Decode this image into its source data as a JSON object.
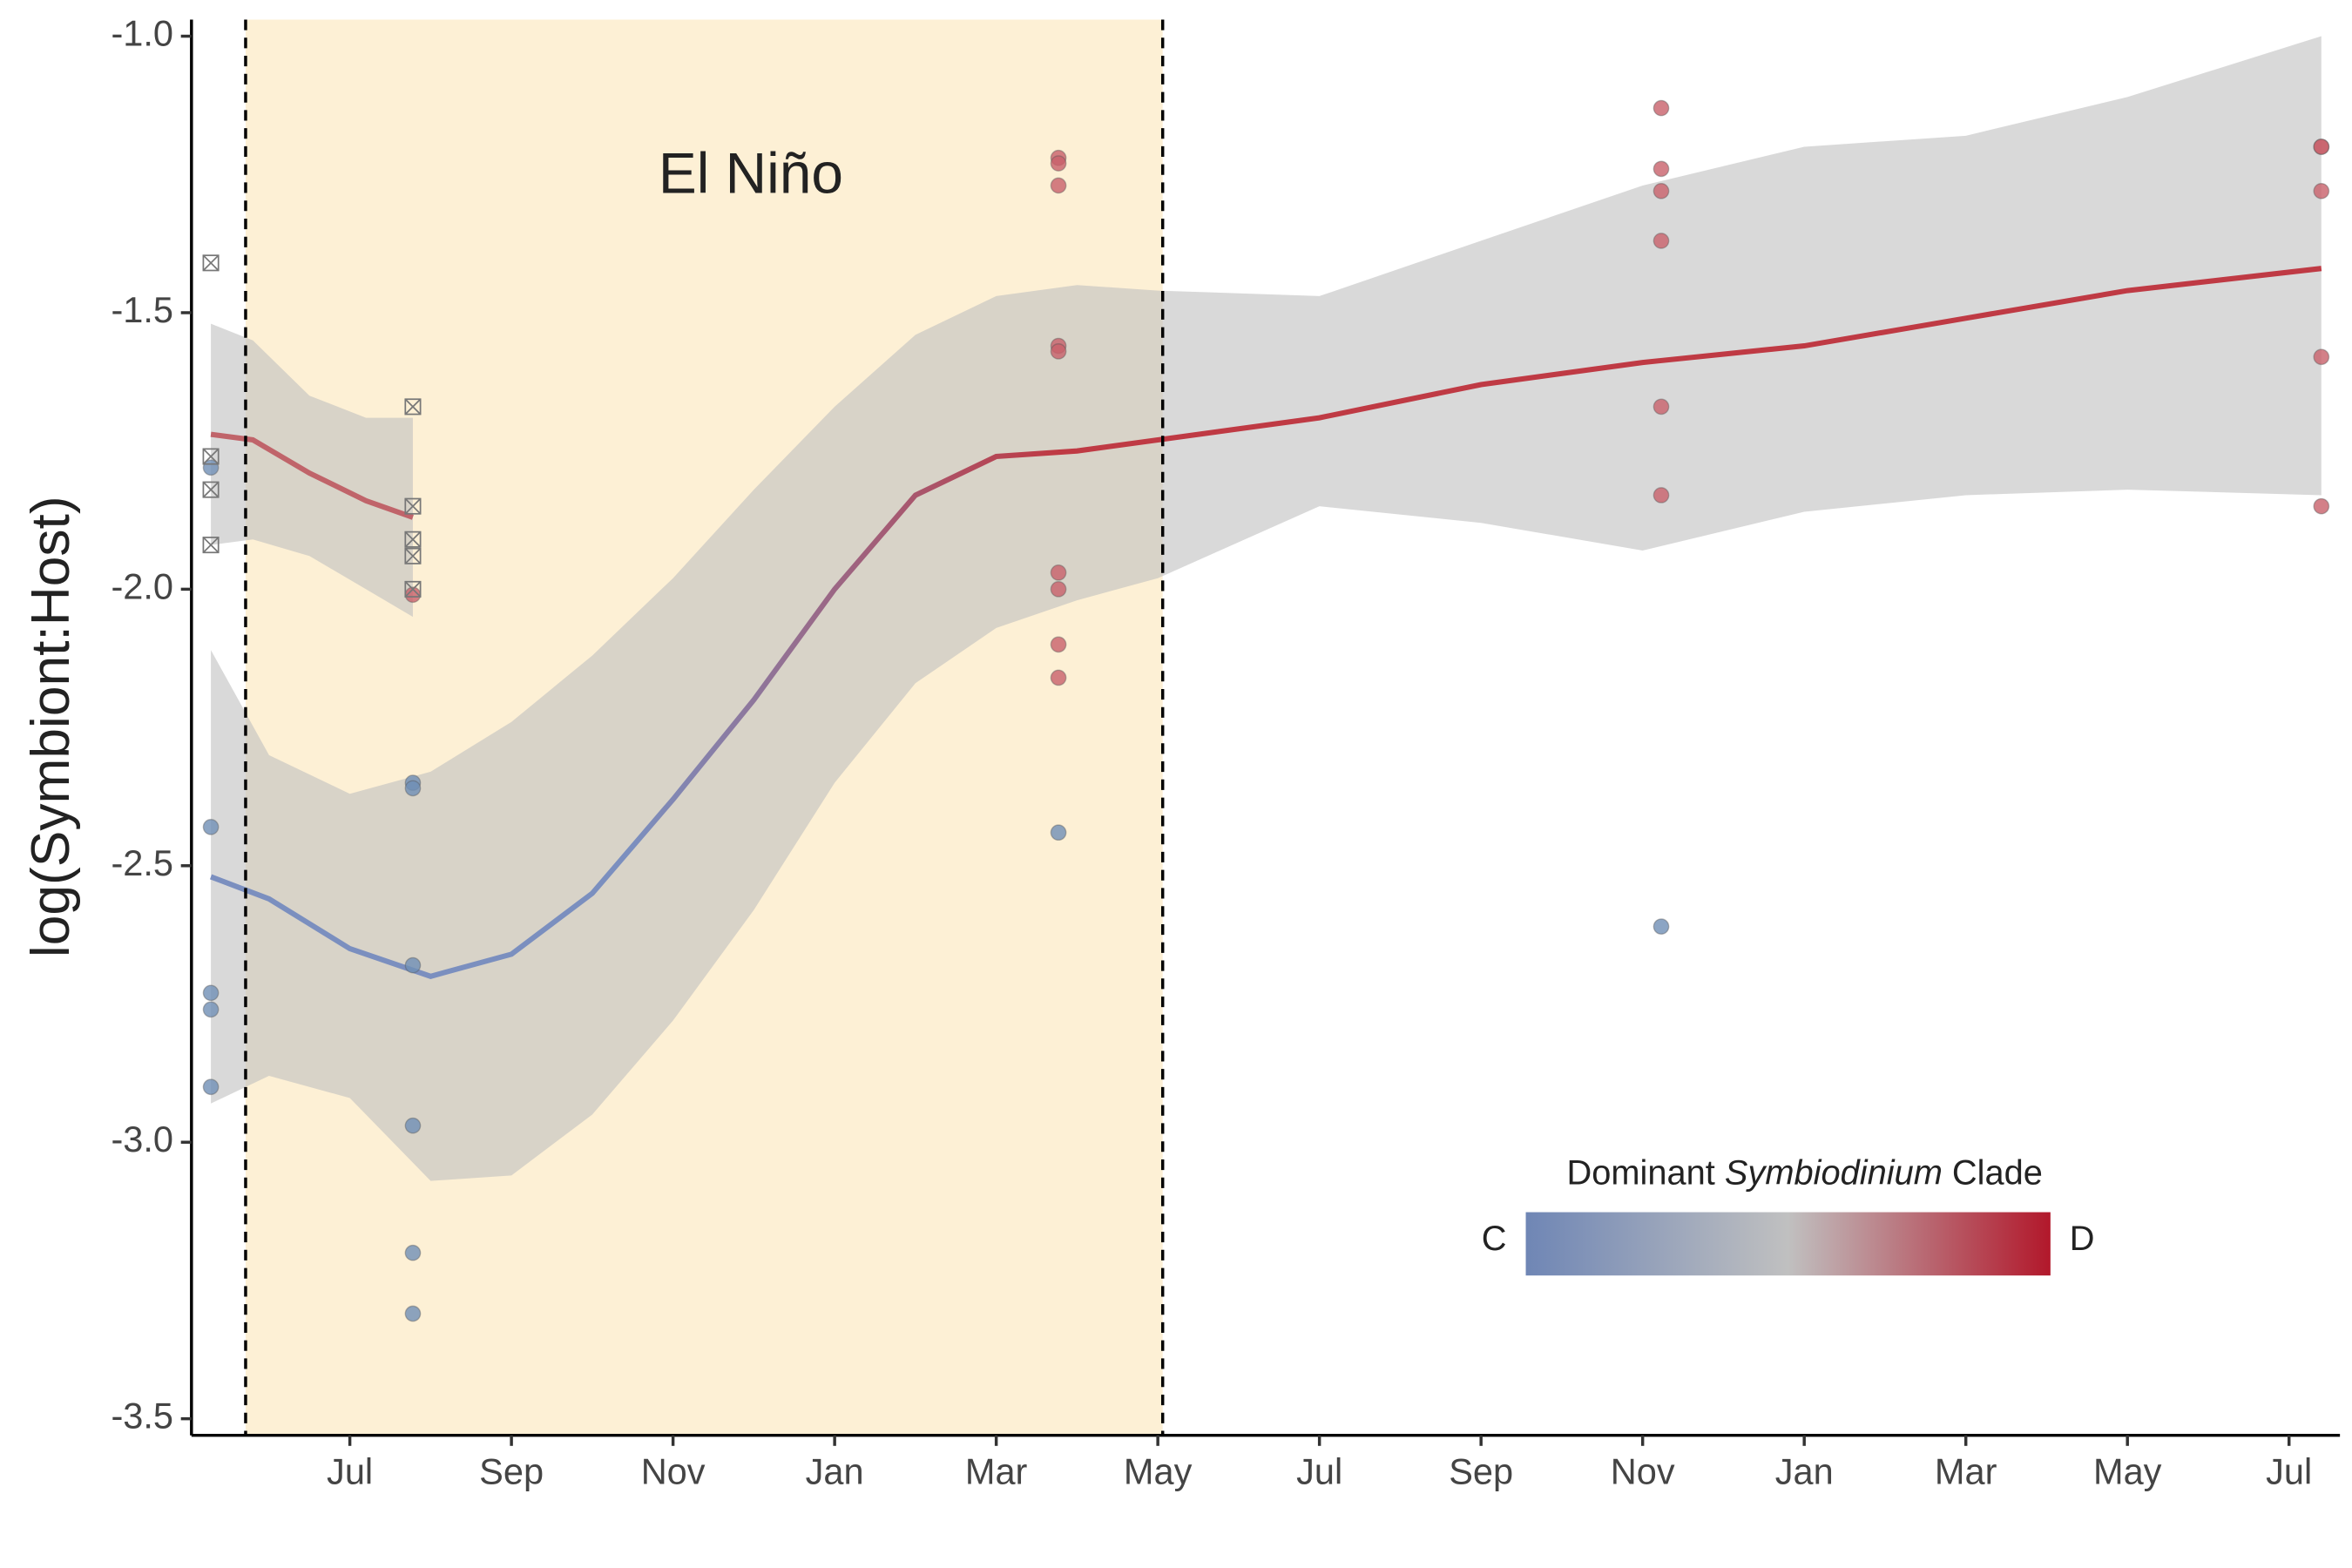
{
  "chart_data": {
    "type": "scatter-smooth",
    "y_label": "log(Symbiont:Host)",
    "annotation": "El Niño",
    "shade": {
      "xlim": [
        5.71,
        17.06
      ],
      "color": "#fdf0d5"
    },
    "xlim": [
      5.04,
      31.63
    ],
    "ylim": [
      -3.53,
      -0.97
    ],
    "xticks": [
      {
        "value": 7,
        "label": "Jul"
      },
      {
        "value": 9,
        "label": "Sep"
      },
      {
        "value": 11,
        "label": "Nov"
      },
      {
        "value": 13,
        "label": "Jan"
      },
      {
        "value": 15,
        "label": "Mar"
      },
      {
        "value": 17,
        "label": "May"
      },
      {
        "value": 19,
        "label": "Jul"
      },
      {
        "value": 21,
        "label": "Sep"
      },
      {
        "value": 23,
        "label": "Nov"
      },
      {
        "value": 25,
        "label": "Jan"
      },
      {
        "value": 27,
        "label": "Mar"
      },
      {
        "value": 29,
        "label": "May"
      },
      {
        "value": 31,
        "label": "Jul"
      }
    ],
    "yticks": [
      {
        "value": -1,
        "label": "-1.0"
      },
      -1.5,
      {
        "value": -2,
        "label": "-2.0"
      },
      -2.5,
      {
        "value": -3,
        "label": "-3.0"
      },
      -3.5
    ],
    "points": [
      {
        "color": "#6f8fb5",
        "marker": "circle",
        "x": [
          5.28,
          5.28,
          5.28,
          5.28,
          5.28,
          7.78,
          7.78,
          7.78,
          7.78,
          7.78,
          7.78,
          15.77,
          23.23
        ],
        "values": [
          -1.78,
          -2.43,
          -2.73,
          -2.76,
          -2.9,
          -2.35,
          -2.36,
          -2.68,
          -2.97,
          -3.2,
          -3.31,
          -2.44,
          -2.61
        ]
      },
      {
        "color": "#c8606a",
        "marker": "circle",
        "x": [
          7.78,
          15.77,
          15.77,
          15.77,
          15.77,
          15.77,
          15.77,
          15.77,
          15.77,
          15.77,
          23.23,
          23.23,
          23.23,
          23.23,
          23.23,
          23.23,
          31.4,
          31.4,
          31.4,
          31.4,
          31.4
        ],
        "values": [
          -2.01,
          -1.22,
          -1.23,
          -1.27,
          -1.56,
          -1.57,
          -1.97,
          -2.0,
          -2.1,
          -2.16,
          -1.13,
          -1.24,
          -1.28,
          -1.37,
          -1.67,
          -1.83,
          -1.2,
          -1.2,
          -1.28,
          -1.58,
          -1.85
        ]
      },
      {
        "color": "#777777",
        "marker": "crossed-square",
        "x": [
          5.28,
          5.28,
          5.28,
          5.28,
          7.78,
          7.78,
          7.78,
          7.78,
          7.78
        ],
        "values": [
          -1.41,
          -1.76,
          -1.82,
          -1.92,
          -1.67,
          -1.85,
          -1.91,
          -1.94,
          -2.0
        ]
      }
    ],
    "smooths": [
      {
        "colors": [
          "#c0646a",
          "#c0646a"
        ],
        "ribbon_color": "#bfbfbf",
        "x": [
          5.28,
          5.8,
          6.5,
          7.2,
          7.78
        ],
        "values": [
          -1.72,
          -1.73,
          -1.79,
          -1.84,
          -1.87
        ],
        "upper": [
          -1.52,
          -1.55,
          -1.65,
          -1.69,
          -1.69
        ],
        "lower": [
          -1.92,
          -1.91,
          -1.94,
          -2.0,
          -2.05
        ]
      },
      {
        "colors": [
          "#7b8fbf",
          "#bf3a44"
        ],
        "ribbon_color": "#bfbfbf",
        "x": [
          5.28,
          6,
          7,
          8,
          9,
          10,
          11,
          12,
          13,
          14,
          15,
          16,
          17,
          19,
          21,
          23,
          25,
          27,
          29,
          31.4
        ],
        "values": [
          -2.52,
          -2.56,
          -2.65,
          -2.7,
          -2.66,
          -2.55,
          -2.38,
          -2.2,
          -2.0,
          -1.83,
          -1.76,
          -1.75,
          -1.73,
          -1.69,
          -1.63,
          -1.59,
          -1.56,
          -1.51,
          -1.46,
          -1.42
        ],
        "upper": [
          -2.11,
          -2.3,
          -2.37,
          -2.33,
          -2.24,
          -2.12,
          -1.98,
          -1.82,
          -1.67,
          -1.54,
          -1.47,
          -1.45,
          -1.46,
          -1.47,
          -1.37,
          -1.27,
          -1.2,
          -1.18,
          -1.11,
          -1.0
        ],
        "lower": [
          -2.93,
          -2.88,
          -2.92,
          -3.07,
          -3.06,
          -2.95,
          -2.78,
          -2.58,
          -2.35,
          -2.17,
          -2.07,
          -2.02,
          -1.98,
          -1.85,
          -1.88,
          -1.93,
          -1.86,
          -1.83,
          -1.82,
          -1.83
        ]
      }
    ],
    "legend": {
      "title_start": "Dominant ",
      "title_italic": "Symbiodinium",
      "title_end": " Clade",
      "low_label": "C",
      "high_label": "D",
      "colors": [
        "#6f86b5",
        "#c0c0c0",
        "#b2182b"
      ]
    }
  }
}
